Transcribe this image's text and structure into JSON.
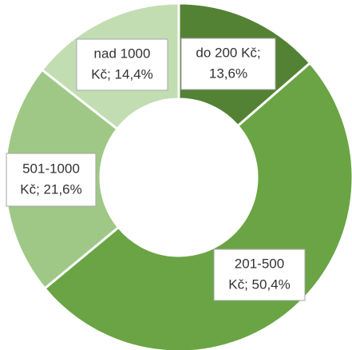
{
  "chart_data": {
    "type": "donut",
    "values": [
      13.6,
      50.4,
      21.6,
      14.4
    ],
    "value_labels": [
      [
        "do 200 Kč;",
        "13,6%"
      ],
      [
        "201-500",
        "Kč; 50,4%"
      ],
      [
        "501-1000",
        "Kč; 21,6%"
      ],
      [
        "nad 1000",
        "Kč; 14,4%"
      ]
    ],
    "colors": [
      "#548235",
      "#6aa444",
      "#9fc887",
      "#c3ddb3"
    ]
  }
}
